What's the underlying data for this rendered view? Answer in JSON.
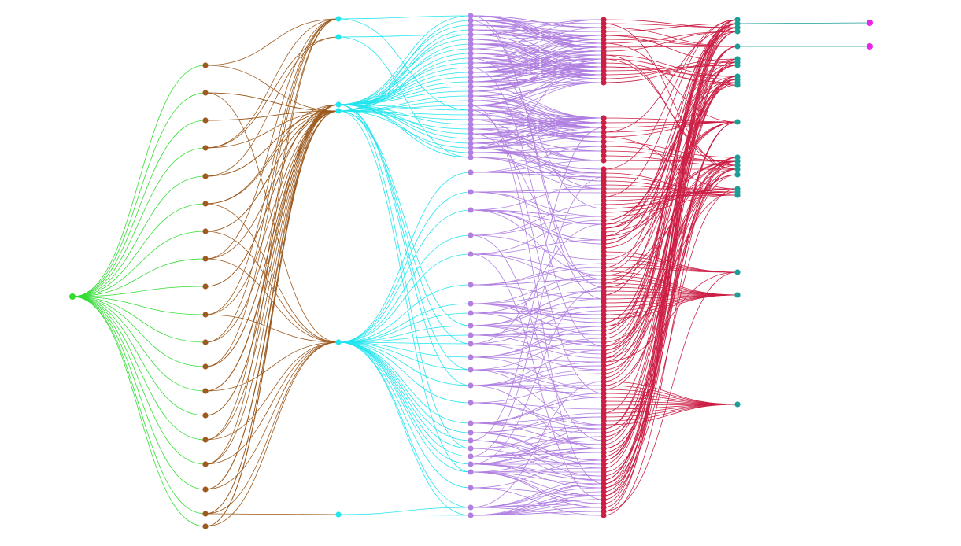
{
  "layers": [
    {
      "color": "#33dd33"
    },
    {
      "color": "#9c5a1e"
    },
    {
      "color": "#22e5ee"
    },
    {
      "color": "#b07fe0"
    },
    {
      "color": "#cc1f45"
    },
    {
      "color": "#1a9e96"
    },
    {
      "color": "#ee22ee"
    }
  ]
}
